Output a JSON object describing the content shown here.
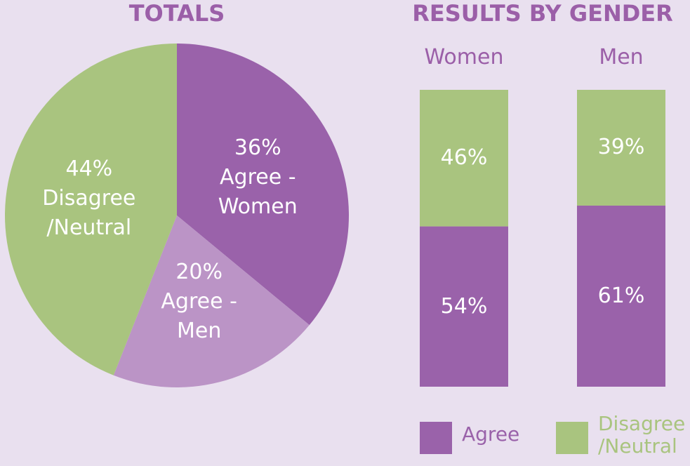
{
  "chart_data": [
    {
      "type": "pie",
      "title": "TOTALS",
      "categories": [
        "Agree - Women",
        "Agree - Men",
        "Disagree /Neutral"
      ],
      "values": [
        36,
        20,
        44
      ],
      "value_labels": [
        "36%",
        "20%",
        "44%"
      ],
      "colors": [
        "#9a62aa",
        "#bb94c6",
        "#a9c47f"
      ]
    },
    {
      "type": "stacked_bar",
      "title": "RESULTS BY GENDER",
      "categories": [
        "Women",
        "Men"
      ],
      "ylim": [
        0,
        100
      ],
      "legend": "bottom",
      "series": [
        {
          "name": "Agree",
          "color": "#9a62aa",
          "values": [
            54,
            61
          ],
          "value_labels": [
            "54%",
            "61%"
          ]
        },
        {
          "name": "Disagree /Neutral",
          "color": "#a9c47f",
          "values": [
            46,
            39
          ],
          "value_labels": [
            "46%",
            "39%"
          ]
        }
      ]
    }
  ]
}
